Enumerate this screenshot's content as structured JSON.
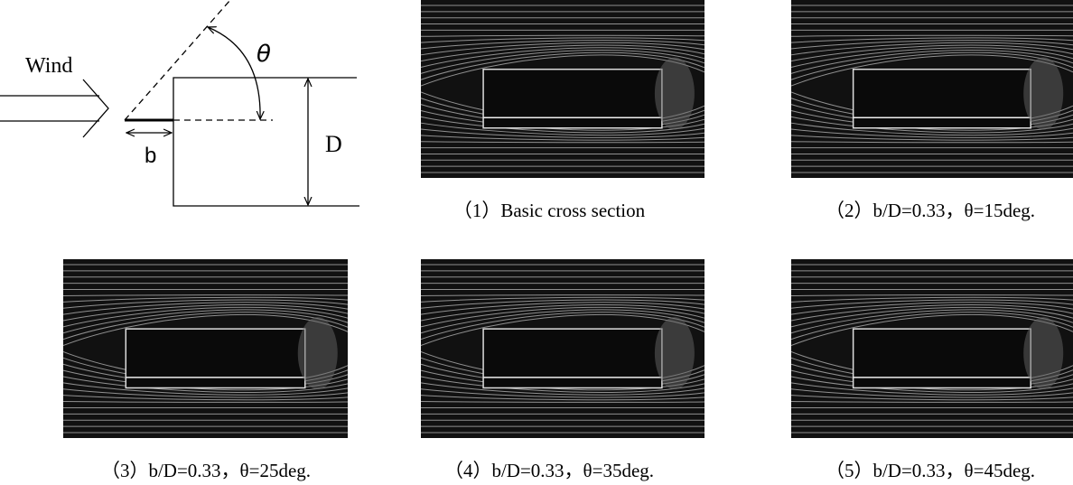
{
  "diagram": {
    "wind_label": "Wind",
    "angle_label": "θ",
    "length_label": "b",
    "depth_label": "D"
  },
  "captions": [
    "（1）Basic cross section",
    "（2）b/D=0.33，θ=15deg.",
    "（3）b/D=0.33，θ=25deg.",
    "（4）b/D=0.33，θ=35deg.",
    "（5）b/D=0.33，θ=45deg."
  ]
}
